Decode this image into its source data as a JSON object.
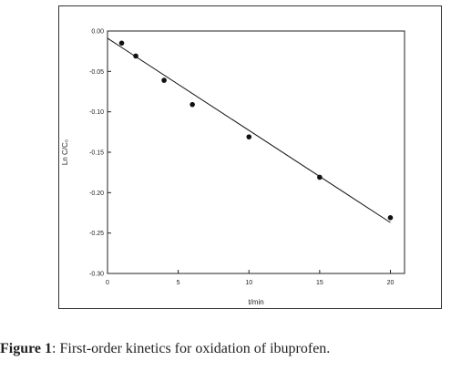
{
  "chart_data": {
    "type": "scatter",
    "title": "",
    "xlabel": "t/min",
    "ylabel": "Ln C/C₀",
    "xlim": [
      0,
      21
    ],
    "ylim": [
      -0.3,
      0.0
    ],
    "x_ticks": [
      0,
      5,
      10,
      15,
      20
    ],
    "x_tick_labels": [
      "0",
      "5",
      "10",
      "15",
      "20"
    ],
    "y_ticks": [
      0.0,
      -0.05,
      -0.1,
      -0.15,
      -0.2,
      -0.25,
      -0.3
    ],
    "y_tick_labels": [
      "0.00",
      "-0.05",
      "-0.10",
      "-0.15",
      "-0.20",
      "-0.25",
      "-0.30"
    ],
    "grid": false,
    "series": [
      {
        "x": [
          1,
          2,
          4,
          6,
          10,
          15,
          20
        ],
        "y": [
          -0.015,
          -0.031,
          -0.061,
          -0.091,
          -0.131,
          -0.181,
          -0.231
        ]
      }
    ],
    "fit_line": {
      "x": [
        0,
        20
      ],
      "y": [
        -0.009,
        -0.237
      ]
    }
  },
  "caption": {
    "label": "Figure 1",
    "text": ": First-order kinetics for oxidation of ibuprofen."
  }
}
